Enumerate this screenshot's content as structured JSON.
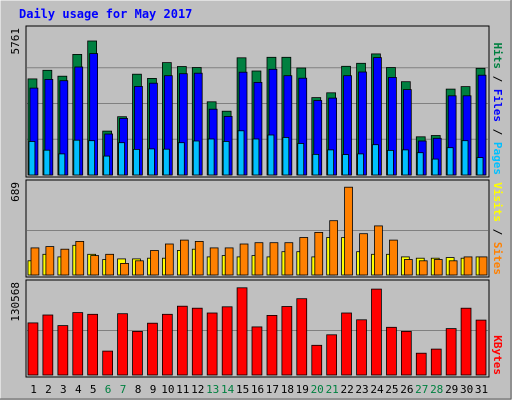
{
  "chart_data": [
    {
      "type": "bar",
      "title": "Daily usage for May 2017",
      "ymax_label": "5761",
      "ylim": [
        0,
        5761
      ],
      "legend_right": [
        {
          "text": "Pages",
          "color": "#00c0ff"
        },
        {
          "text": "Files",
          "color": "#0000ff"
        },
        {
          "text": "Hits",
          "color": "#008040"
        }
      ],
      "categories": [
        "1",
        "2",
        "3",
        "4",
        "5",
        "6",
        "7",
        "8",
        "9",
        "10",
        "11",
        "12",
        "13",
        "14",
        "15",
        "16",
        "17",
        "18",
        "19",
        "20",
        "21",
        "22",
        "23",
        "24",
        "25",
        "26",
        "27",
        "28",
        "29",
        "30",
        "31"
      ],
      "series": [
        {
          "name": "Hits",
          "color": "#008040",
          "values": [
            3870,
            4220,
            3980,
            4860,
            5400,
            1770,
            2350,
            4060,
            3890,
            4530,
            4370,
            4330,
            2950,
            2570,
            4720,
            4190,
            4740,
            4740,
            4310,
            3120,
            3310,
            4380,
            4500,
            4880,
            4330,
            3760,
            1540,
            1590,
            3460,
            3560,
            4300
          ]
        },
        {
          "name": "Files",
          "color": "#0000ff",
          "values": [
            3500,
            3850,
            3800,
            4350,
            4890,
            1650,
            2280,
            3570,
            3700,
            4000,
            4080,
            4100,
            2650,
            2360,
            4140,
            3730,
            4260,
            4000,
            3900,
            3000,
            3100,
            4000,
            4150,
            4730,
            3930,
            3440,
            1370,
            1480,
            3190,
            3190,
            4020
          ]
        },
        {
          "name": "Pages",
          "color": "#00c0ff",
          "values": [
            1350,
            1000,
            850,
            1400,
            1380,
            760,
            1300,
            1030,
            1050,
            1040,
            1300,
            1370,
            1450,
            1350,
            1780,
            1450,
            1610,
            1510,
            1270,
            830,
            1010,
            820,
            850,
            1220,
            990,
            1010,
            900,
            640,
            1100,
            1380,
            700
          ]
        }
      ]
    },
    {
      "type": "bar",
      "ymax_label": "689",
      "ylim": [
        0,
        689
      ],
      "legend_right": [
        {
          "text": "Sites",
          "color": "#ff8000"
        },
        {
          "text": "Visits",
          "color": "#ffff00"
        }
      ],
      "categories": [
        "1",
        "2",
        "3",
        "4",
        "5",
        "6",
        "7",
        "8",
        "9",
        "10",
        "11",
        "12",
        "13",
        "14",
        "15",
        "16",
        "17",
        "18",
        "19",
        "20",
        "21",
        "22",
        "23",
        "24",
        "25",
        "26",
        "27",
        "28",
        "29",
        "30",
        "31"
      ],
      "series": [
        {
          "name": "Visits",
          "color": "#ffff00",
          "values": [
            110,
            160,
            140,
            230,
            160,
            120,
            125,
            125,
            130,
            130,
            190,
            200,
            140,
            150,
            140,
            150,
            140,
            180,
            180,
            140,
            290,
            290,
            180,
            160,
            160,
            140,
            130,
            130,
            135,
            130,
            140
          ]
        },
        {
          "name": "Sites",
          "color": "#ff8000",
          "values": [
            210,
            220,
            200,
            260,
            150,
            160,
            90,
            110,
            190,
            240,
            270,
            260,
            210,
            210,
            240,
            250,
            250,
            250,
            290,
            330,
            420,
            680,
            320,
            380,
            270,
            120,
            110,
            120,
            110,
            140,
            140
          ]
        }
      ]
    },
    {
      "type": "bar",
      "ymax_label": "130568",
      "ylim": [
        0,
        130568
      ],
      "legend_right": [
        {
          "text": "KBytes",
          "color": "#ff0000"
        }
      ],
      "categories": [
        "1",
        "2",
        "3",
        "4",
        "5",
        "6",
        "7",
        "8",
        "9",
        "10",
        "11",
        "12",
        "13",
        "14",
        "15",
        "16",
        "17",
        "18",
        "19",
        "20",
        "21",
        "22",
        "23",
        "24",
        "25",
        "26",
        "27",
        "28",
        "29",
        "30",
        "31"
      ],
      "series": [
        {
          "name": "KBytes",
          "color": "#ff0000",
          "values": [
            76500,
            88000,
            72500,
            91500,
            89000,
            35000,
            90000,
            64000,
            76000,
            89000,
            101000,
            98000,
            91000,
            100000,
            128000,
            70500,
            87500,
            100500,
            112000,
            43500,
            59000,
            91000,
            81000,
            126000,
            70000,
            64000,
            32000,
            38000,
            68000,
            98000,
            80500
          ]
        }
      ]
    }
  ],
  "x_ticks": [
    {
      "label": "1",
      "color": "#000000"
    },
    {
      "label": "2",
      "color": "#000000"
    },
    {
      "label": "3",
      "color": "#000000"
    },
    {
      "label": "4",
      "color": "#000000"
    },
    {
      "label": "5",
      "color": "#000000"
    },
    {
      "label": "6",
      "color": "#008040"
    },
    {
      "label": "7",
      "color": "#008040"
    },
    {
      "label": "8",
      "color": "#000000"
    },
    {
      "label": "9",
      "color": "#000000"
    },
    {
      "label": "10",
      "color": "#000000"
    },
    {
      "label": "11",
      "color": "#000000"
    },
    {
      "label": "12",
      "color": "#000000"
    },
    {
      "label": "13",
      "color": "#008040"
    },
    {
      "label": "14",
      "color": "#008040"
    },
    {
      "label": "15",
      "color": "#000000"
    },
    {
      "label": "16",
      "color": "#000000"
    },
    {
      "label": "17",
      "color": "#000000"
    },
    {
      "label": "18",
      "color": "#000000"
    },
    {
      "label": "19",
      "color": "#000000"
    },
    {
      "label": "20",
      "color": "#008040"
    },
    {
      "label": "21",
      "color": "#008040"
    },
    {
      "label": "22",
      "color": "#000000"
    },
    {
      "label": "23",
      "color": "#000000"
    },
    {
      "label": "24",
      "color": "#000000"
    },
    {
      "label": "25",
      "color": "#000000"
    },
    {
      "label": "26",
      "color": "#000000"
    },
    {
      "label": "27",
      "color": "#008040"
    },
    {
      "label": "28",
      "color": "#008040"
    },
    {
      "label": "29",
      "color": "#000000"
    },
    {
      "label": "30",
      "color": "#000000"
    },
    {
      "label": "31",
      "color": "#000000"
    }
  ],
  "colors": {
    "background": "#c0c0c0",
    "title": "#0000ff",
    "grid": "#808080",
    "separator": "#000000"
  }
}
